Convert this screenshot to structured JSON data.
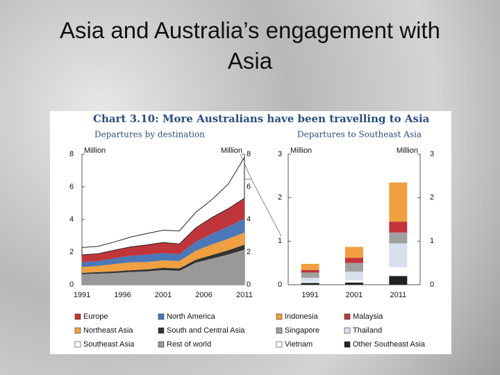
{
  "slide_title": "Asia and Australia’s engagement with Asia",
  "chart_title": "Chart 3.10: More Australians have been travelling to Asia",
  "chart_data": [
    {
      "type": "area",
      "subtitle": "Departures by destination",
      "y_label": "Million",
      "x": [
        1991,
        1993,
        1995,
        1997,
        1999,
        2001,
        2003,
        2005,
        2007,
        2009,
        2011
      ],
      "xlim": [
        1991,
        2011
      ],
      "xticks": [
        1991,
        1996,
        2001,
        2006,
        2011
      ],
      "ylim": [
        0,
        8
      ],
      "yticks": [
        0,
        2,
        4,
        6,
        8
      ],
      "series": [
        {
          "name": "Europe",
          "color": "#c0353a",
          "values": [
            0.45,
            0.45,
            0.5,
            0.55,
            0.6,
            0.65,
            0.63,
            0.85,
            1.0,
            1.1,
            1.25
          ]
        },
        {
          "name": "North America",
          "color": "#4a78b8",
          "values": [
            0.3,
            0.3,
            0.35,
            0.4,
            0.45,
            0.45,
            0.42,
            0.55,
            0.65,
            0.75,
            0.85
          ]
        },
        {
          "name": "Northeast Asia",
          "color": "#f0a040",
          "values": [
            0.35,
            0.38,
            0.45,
            0.48,
            0.45,
            0.45,
            0.45,
            0.55,
            0.65,
            0.7,
            0.75
          ]
        },
        {
          "name": "South and Central Asia",
          "color": "#333333",
          "values": [
            0.08,
            0.09,
            0.1,
            0.11,
            0.12,
            0.14,
            0.15,
            0.18,
            0.22,
            0.26,
            0.3
          ]
        },
        {
          "name": "Southeast Asia",
          "color": "#ffffff",
          "values": [
            0.45,
            0.45,
            0.5,
            0.6,
            0.7,
            0.75,
            0.8,
            0.95,
            1.1,
            1.5,
            2.5
          ]
        },
        {
          "name": "Rest of world",
          "color": "#999999",
          "values": [
            0.65,
            0.68,
            0.72,
            0.78,
            0.82,
            0.9,
            0.85,
            1.35,
            1.6,
            1.85,
            2.15
          ]
        }
      ]
    },
    {
      "type": "bar",
      "subtitle": "Departures to Southeast Asia",
      "y_label": "Million",
      "categories": [
        "1991",
        "2001",
        "2011"
      ],
      "ylim": [
        0,
        3
      ],
      "yticks": [
        0,
        1,
        2,
        3
      ],
      "series": [
        {
          "name": "Indonesia",
          "color": "#f0a040",
          "values": [
            0.14,
            0.25,
            0.9
          ]
        },
        {
          "name": "Malaysia",
          "color": "#c0353a",
          "values": [
            0.06,
            0.12,
            0.25
          ]
        },
        {
          "name": "Singapore",
          "color": "#a0a0a0",
          "values": [
            0.12,
            0.2,
            0.25
          ]
        },
        {
          "name": "Thailand",
          "color": "#d8e0ee",
          "values": [
            0.1,
            0.2,
            0.55
          ]
        },
        {
          "name": "Vietnam",
          "color": "#ffffff",
          "values": [
            0.02,
            0.05,
            0.2
          ]
        },
        {
          "name": "Other Southeast Asia",
          "color": "#222222",
          "values": [
            0.04,
            0.05,
            0.2
          ]
        }
      ]
    }
  ]
}
